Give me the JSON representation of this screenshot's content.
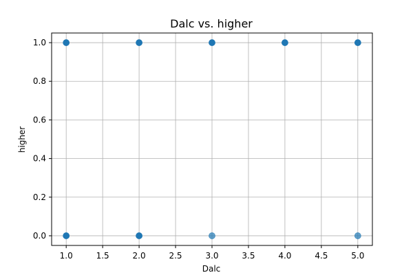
{
  "chart_data": {
    "type": "scatter",
    "title": "Dalc vs. higher",
    "xlabel": "Dalc",
    "ylabel": "higher",
    "xlim": [
      0.8,
      5.2
    ],
    "ylim": [
      -0.05,
      1.05
    ],
    "xticks": [
      "1.0",
      "1.5",
      "2.0",
      "2.5",
      "3.0",
      "3.5",
      "4.0",
      "4.5",
      "5.0"
    ],
    "yticks": [
      "0.0",
      "0.2",
      "0.4",
      "0.6",
      "0.8",
      "1.0"
    ],
    "grid": true,
    "color": "#1f77b4",
    "points": [
      {
        "x": 1,
        "y": 1,
        "alpha": 1.0
      },
      {
        "x": 2,
        "y": 1,
        "alpha": 1.0
      },
      {
        "x": 3,
        "y": 1,
        "alpha": 1.0
      },
      {
        "x": 4,
        "y": 1,
        "alpha": 1.0
      },
      {
        "x": 5,
        "y": 1,
        "alpha": 1.0
      },
      {
        "x": 1,
        "y": 0,
        "alpha": 1.0
      },
      {
        "x": 2,
        "y": 0,
        "alpha": 1.0
      },
      {
        "x": 3,
        "y": 0,
        "alpha": 0.7
      },
      {
        "x": 5,
        "y": 0,
        "alpha": 0.7
      }
    ]
  }
}
